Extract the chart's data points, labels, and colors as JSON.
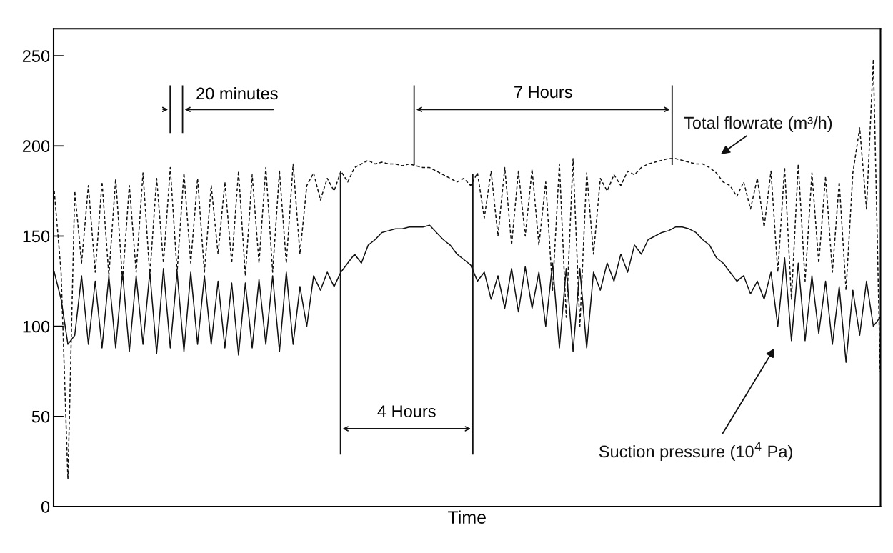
{
  "chart_data": {
    "type": "line",
    "xlabel": "Time",
    "categories": [
      null,
      null,
      null,
      null,
      null,
      null,
      null,
      null,
      null,
      null,
      null,
      null,
      null,
      null,
      null,
      null,
      null,
      null,
      null,
      null,
      null,
      null,
      null,
      null,
      null,
      null,
      null,
      null,
      null,
      null,
      null,
      null,
      null,
      null,
      null,
      null,
      null,
      null,
      null,
      null,
      null,
      null,
      null,
      null,
      null,
      null,
      null,
      null,
      null,
      null,
      null,
      null,
      null,
      null,
      null,
      null,
      null,
      null,
      null,
      null,
      null,
      null,
      null,
      null,
      null,
      null,
      null,
      null,
      null,
      null,
      null,
      null,
      null,
      null,
      null,
      null,
      null,
      null,
      null,
      null,
      null,
      null,
      null,
      null,
      null,
      null,
      null,
      null,
      null,
      null,
      null,
      null,
      null,
      null,
      null,
      null,
      null,
      null,
      null,
      null,
      null,
      null,
      null,
      null,
      null,
      null,
      null,
      null,
      null,
      null,
      null,
      null,
      null,
      null,
      null,
      null,
      null,
      null,
      null,
      null,
      null,
      null
    ],
    "series": [
      {
        "name": "Total flowrate (m³/h)",
        "color": "#111111",
        "line_style": "dashed",
        "values": [
          175,
          130,
          15,
          175,
          135,
          178,
          130,
          180,
          128,
          182,
          125,
          178,
          130,
          185,
          128,
          182,
          135,
          188,
          130,
          185,
          135,
          182,
          130,
          178,
          140,
          180,
          135,
          186,
          128,
          184,
          135,
          188,
          130,
          186,
          135,
          190,
          140,
          178,
          185,
          170,
          182,
          175,
          186,
          180,
          188,
          190,
          192,
          190,
          191,
          190,
          190,
          189,
          190,
          189,
          188,
          188,
          186,
          184,
          182,
          180,
          182,
          178,
          185,
          160,
          186,
          150,
          188,
          145,
          186,
          150,
          187,
          145,
          180,
          120,
          190,
          105,
          193,
          100,
          185,
          140,
          182,
          175,
          184,
          178,
          186,
          184,
          188,
          190,
          191,
          192,
          193,
          193,
          192,
          191,
          190,
          190,
          188,
          185,
          180,
          178,
          172,
          180,
          165,
          182,
          155,
          186,
          130,
          188,
          115,
          190,
          125,
          185,
          135,
          183,
          130,
          180,
          120,
          185,
          210,
          165,
          248,
          75
        ]
      },
      {
        "name": "Suction pressure (10$^{4}$ Pa)",
        "color": "#111111",
        "line_style": "solid",
        "values": [
          130,
          115,
          90,
          95,
          128,
          90,
          125,
          88,
          128,
          88,
          130,
          86,
          128,
          90,
          130,
          85,
          132,
          88,
          130,
          86,
          130,
          90,
          128,
          90,
          125,
          88,
          124,
          84,
          124,
          88,
          126,
          90,
          128,
          86,
          130,
          90,
          122,
          100,
          128,
          120,
          130,
          122,
          130,
          135,
          140,
          135,
          145,
          148,
          152,
          153,
          154,
          154,
          155,
          155,
          155,
          156,
          152,
          148,
          145,
          140,
          137,
          134,
          125,
          130,
          115,
          128,
          110,
          132,
          108,
          133,
          110,
          130,
          100,
          135,
          88,
          132,
          86,
          132,
          88,
          130,
          120,
          135,
          125,
          140,
          130,
          145,
          140,
          148,
          150,
          152,
          153,
          155,
          155,
          154,
          152,
          148,
          145,
          138,
          135,
          130,
          125,
          128,
          118,
          125,
          115,
          130,
          100,
          138,
          92,
          135,
          92,
          128,
          96,
          125,
          90,
          122,
          80,
          120,
          95,
          125,
          100,
          105
        ]
      }
    ],
    "ylim": [
      0,
      265
    ],
    "yticks": [
      0,
      50,
      100,
      150,
      200,
      250
    ],
    "tick_labels": "y",
    "annotations": [
      "20 minutes",
      "7 Hours",
      "4 Hours"
    ]
  }
}
